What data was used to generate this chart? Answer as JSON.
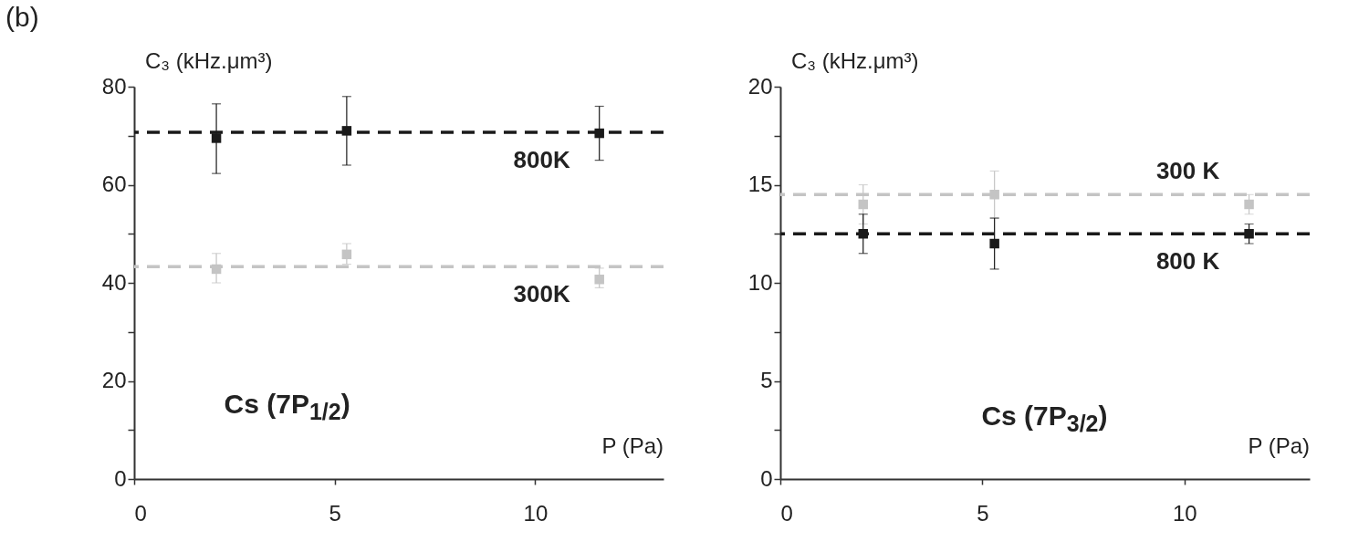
{
  "chart_data": [
    {
      "type": "scatter",
      "title": "(b)",
      "xlabel": "P (Pa)",
      "ylabel": "C₃ (kHz.μm³)",
      "xlim": [
        0,
        13.2
      ],
      "xticks": [
        0,
        5,
        10
      ],
      "ylim": [
        0,
        80
      ],
      "yticks": [
        0,
        {
          "value": 10,
          "label": null
        },
        20,
        {
          "value": 30,
          "label": null
        },
        40,
        {
          "value": 50,
          "label": null
        },
        60,
        {
          "value": 70,
          "label": null
        },
        80
      ],
      "grid": false,
      "marker": "square",
      "annotations": [
        "Cs (7P$_{1/2}$)"
      ],
      "x": [
        2.05,
        5.3,
        11.6
      ],
      "series": [
        {
          "color": "#1a1a1a",
          "values": [
            69.5,
            71,
            70.5
          ],
          "errors": [
            [
              62.3,
              76.5
            ],
            [
              64,
              78
            ],
            [
              65,
              76
            ]
          ]
        },
        {
          "color": "#c4c4c4",
          "values": [
            42.8,
            45.8,
            40.7
          ],
          "errors": [
            [
              40,
              46
            ],
            [
              43.8,
              48
            ],
            [
              39,
              43
            ]
          ]
        }
      ],
      "ref_lines": [
        {
          "axis": "y",
          "value": 70.7,
          "label": "800K",
          "color": "#1a1a1a",
          "line_style": "dashed"
        },
        {
          "axis": "y",
          "value": 43.3,
          "label": "300K",
          "color": "#c4c4c4",
          "line_style": "dashed"
        }
      ]
    },
    {
      "type": "scatter",
      "xlabel": "P (Pa)",
      "ylabel": "C₃ (kHz.μm³)",
      "xlim": [
        0,
        13.1
      ],
      "xticks": [
        0,
        5,
        10
      ],
      "ylim": [
        0,
        20
      ],
      "yticks": [
        0,
        {
          "value": 2.5,
          "label": null
        },
        5,
        {
          "value": 7.5,
          "label": null
        },
        10,
        {
          "value": 12.5,
          "label": null
        },
        15,
        {
          "value": 17.5,
          "label": null
        },
        20
      ],
      "grid": false,
      "marker": "square",
      "annotations": [
        "Cs (7P$_{3/2}$)"
      ],
      "x": [
        2.05,
        5.3,
        11.6
      ],
      "series": [
        {
          "color": "#c4c4c4",
          "values": [
            14.0,
            14.5,
            14.0
          ],
          "errors": [
            [
              13.0,
              15.0
            ],
            [
              13.3,
              15.7
            ],
            [
              13.5,
              14.5
            ]
          ]
        },
        {
          "color": "#1a1a1a",
          "values": [
            12.5,
            12.0,
            12.5
          ],
          "errors": [
            [
              11.5,
              13.5
            ],
            [
              10.7,
              13.3
            ],
            [
              12.0,
              13.0
            ]
          ]
        }
      ],
      "ref_lines": [
        {
          "axis": "y",
          "value": 14.5,
          "label": "300 K",
          "color": "#c4c4c4",
          "line_style": "dashed"
        },
        {
          "axis": "y",
          "value": 12.5,
          "label": "800 K",
          "color": "#1a1a1a",
          "line_style": "dashed"
        }
      ]
    }
  ]
}
